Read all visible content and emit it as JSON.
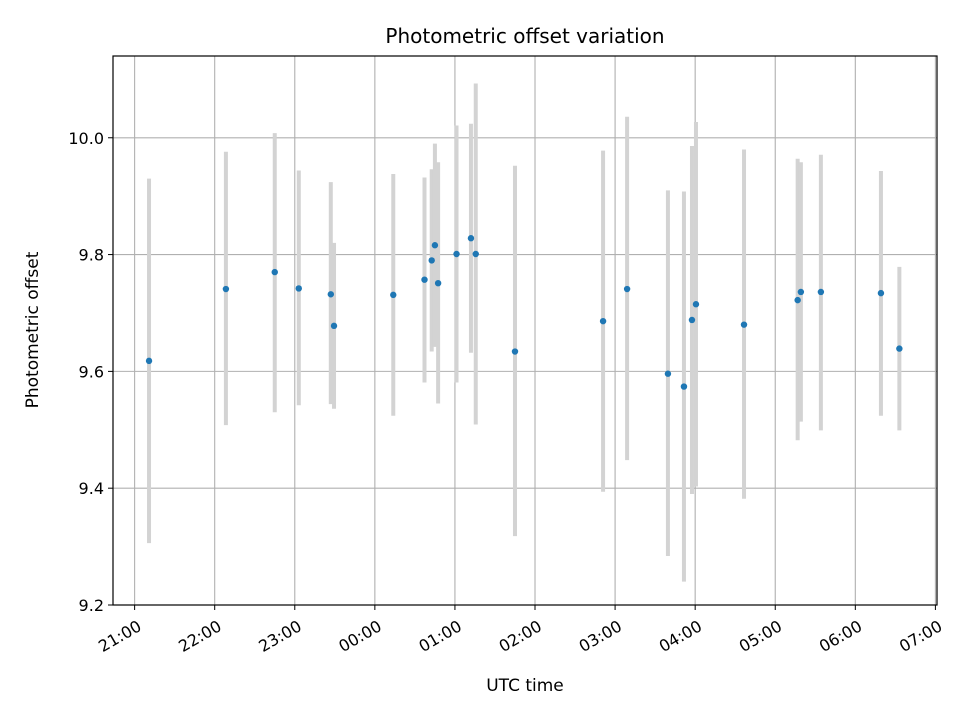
{
  "chart_data": {
    "type": "scatter",
    "title": "Photometric offset variation",
    "xlabel": "UTC time",
    "ylabel": "Photometric offset",
    "x_unit": "hours after 21:00 UTC",
    "xlim": [
      -0.27,
      10.02
    ],
    "ylim": [
      9.2,
      10.14
    ],
    "x_ticks": [
      0,
      1,
      2,
      3,
      4,
      5,
      6,
      7,
      8,
      9,
      10
    ],
    "x_tick_labels": [
      "21:00",
      "22:00",
      "23:00",
      "00:00",
      "01:00",
      "02:00",
      "03:00",
      "04:00",
      "05:00",
      "06:00",
      "07:00"
    ],
    "y_ticks": [
      9.2,
      9.4,
      9.6,
      9.8,
      10.0
    ],
    "y_tick_labels": [
      "9.2",
      "9.4",
      "9.6",
      "9.8",
      "10.0"
    ],
    "grid": true,
    "colors": {
      "point": "#1f77b4",
      "errorbar": "#d3d3d3",
      "grid": "#b0b0b0"
    },
    "points": [
      {
        "x": 0.18,
        "y": 9.618,
        "lo": 9.306,
        "hi": 9.93
      },
      {
        "x": 1.14,
        "y": 9.741,
        "lo": 9.508,
        "hi": 9.976
      },
      {
        "x": 1.75,
        "y": 9.77,
        "lo": 9.53,
        "hi": 10.008
      },
      {
        "x": 2.05,
        "y": 9.742,
        "lo": 9.542,
        "hi": 9.944
      },
      {
        "x": 2.45,
        "y": 9.732,
        "lo": 9.544,
        "hi": 9.924
      },
      {
        "x": 2.49,
        "y": 9.678,
        "lo": 9.536,
        "hi": 9.82
      },
      {
        "x": 3.23,
        "y": 9.731,
        "lo": 9.524,
        "hi": 9.938
      },
      {
        "x": 3.62,
        "y": 9.757,
        "lo": 9.581,
        "hi": 9.932
      },
      {
        "x": 3.71,
        "y": 9.79,
        "lo": 9.634,
        "hi": 9.946
      },
      {
        "x": 3.75,
        "y": 9.816,
        "lo": 9.642,
        "hi": 9.99
      },
      {
        "x": 3.79,
        "y": 9.751,
        "lo": 9.545,
        "hi": 9.958
      },
      {
        "x": 4.02,
        "y": 9.801,
        "lo": 9.581,
        "hi": 10.021
      },
      {
        "x": 4.2,
        "y": 9.828,
        "lo": 9.632,
        "hi": 10.024
      },
      {
        "x": 4.26,
        "y": 9.801,
        "lo": 9.509,
        "hi": 10.093
      },
      {
        "x": 4.75,
        "y": 9.634,
        "lo": 9.318,
        "hi": 9.952
      },
      {
        "x": 5.85,
        "y": 9.686,
        "lo": 9.394,
        "hi": 9.978
      },
      {
        "x": 6.15,
        "y": 9.741,
        "lo": 9.448,
        "hi": 10.036
      },
      {
        "x": 6.66,
        "y": 9.596,
        "lo": 9.284,
        "hi": 9.91
      },
      {
        "x": 6.86,
        "y": 9.574,
        "lo": 9.24,
        "hi": 9.908
      },
      {
        "x": 6.96,
        "y": 9.688,
        "lo": 9.39,
        "hi": 9.986
      },
      {
        "x": 7.01,
        "y": 9.715,
        "lo": 9.403,
        "hi": 10.027
      },
      {
        "x": 7.61,
        "y": 9.68,
        "lo": 9.382,
        "hi": 9.98
      },
      {
        "x": 8.28,
        "y": 9.722,
        "lo": 9.482,
        "hi": 9.964
      },
      {
        "x": 8.32,
        "y": 9.736,
        "lo": 9.514,
        "hi": 9.958
      },
      {
        "x": 8.57,
        "y": 9.736,
        "lo": 9.499,
        "hi": 9.971
      },
      {
        "x": 9.32,
        "y": 9.734,
        "lo": 9.524,
        "hi": 9.943
      },
      {
        "x": 9.55,
        "y": 9.639,
        "lo": 9.499,
        "hi": 9.779
      }
    ]
  }
}
